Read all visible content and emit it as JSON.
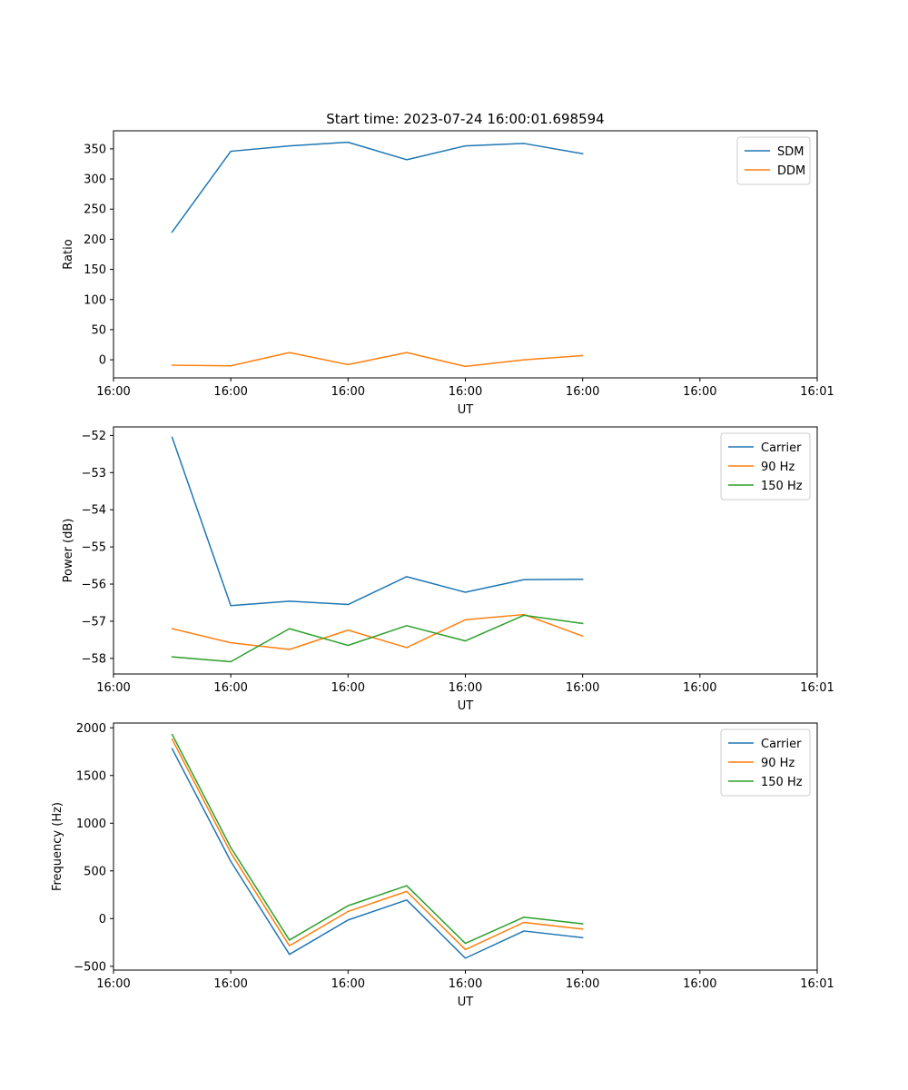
{
  "chart_data": [
    {
      "type": "line",
      "title": "Start time: 2023-07-24 16:00:01.698594",
      "xlabel": "UT",
      "ylabel": "Ratio",
      "xlim": [
        0,
        12
      ],
      "ylim": [
        -30,
        380
      ],
      "x": [
        1,
        2,
        3,
        4,
        5,
        6,
        7,
        8
      ],
      "x_ticks": [
        0,
        2,
        4,
        6,
        8,
        10,
        12
      ],
      "x_tick_labels": [
        "16:00",
        "16:00",
        "16:00",
        "16:00",
        "16:00",
        "16:00",
        "16:01"
      ],
      "y_ticks": [
        0,
        50,
        100,
        150,
        200,
        250,
        300,
        350
      ],
      "y_tick_labels": [
        "0",
        "50",
        "100",
        "150",
        "200",
        "250",
        "300",
        "350"
      ],
      "legend_position": "upper-right",
      "series": [
        {
          "name": "SDM",
          "color": "#1f77b4",
          "values": [
            212,
            346,
            355,
            361,
            332,
            355,
            359,
            342
          ]
        },
        {
          "name": "DDM",
          "color": "#ff7f0e",
          "values": [
            -9,
            -10,
            12,
            -8,
            12,
            -11,
            0,
            7
          ]
        }
      ]
    },
    {
      "type": "line",
      "title": "",
      "xlabel": "UT",
      "ylabel": "Power (dB)",
      "xlim": [
        0,
        12
      ],
      "ylim": [
        -58.42,
        -51.77
      ],
      "x": [
        1,
        2,
        3,
        4,
        5,
        6,
        7,
        8
      ],
      "x_ticks": [
        0,
        2,
        4,
        6,
        8,
        10,
        12
      ],
      "x_tick_labels": [
        "16:00",
        "16:00",
        "16:00",
        "16:00",
        "16:00",
        "16:00",
        "16:01"
      ],
      "y_ticks": [
        -58,
        -57,
        -56,
        -55,
        -54,
        -53,
        -52
      ],
      "y_tick_labels": [
        "−58",
        "−57",
        "−56",
        "−55",
        "−54",
        "−53",
        "−52"
      ],
      "legend_position": "upper-right",
      "series": [
        {
          "name": "Carrier",
          "color": "#1f77b4",
          "values": [
            -52.05,
            -56.58,
            -56.46,
            -56.55,
            -55.8,
            -56.22,
            -55.88,
            -55.87
          ]
        },
        {
          "name": "90 Hz",
          "color": "#ff7f0e",
          "values": [
            -57.2,
            -57.58,
            -57.76,
            -57.24,
            -57.71,
            -56.96,
            -56.82,
            -57.4
          ]
        },
        {
          "name": "150 Hz",
          "color": "#2ca02c",
          "values": [
            -57.96,
            -58.09,
            -57.2,
            -57.65,
            -57.12,
            -57.53,
            -56.84,
            -57.06
          ]
        }
      ]
    },
    {
      "type": "line",
      "title": "",
      "xlabel": "UT",
      "ylabel": "Frequency (Hz)",
      "xlim": [
        0,
        12
      ],
      "ylim": [
        -540,
        2050
      ],
      "x": [
        1,
        2,
        3,
        4,
        5,
        6,
        7,
        8
      ],
      "x_ticks": [
        0,
        2,
        4,
        6,
        8,
        10,
        12
      ],
      "x_tick_labels": [
        "16:00",
        "16:00",
        "16:00",
        "16:00",
        "16:00",
        "16:00",
        "16:01"
      ],
      "y_ticks": [
        -500,
        0,
        500,
        1000,
        1500,
        2000
      ],
      "y_tick_labels": [
        "−500",
        "0",
        "500",
        "1000",
        "1500",
        "2000"
      ],
      "legend_position": "upper-right",
      "series": [
        {
          "name": "Carrier",
          "color": "#1f77b4",
          "values": [
            1780,
            600,
            -375,
            -15,
            195,
            -415,
            -130,
            -200
          ]
        },
        {
          "name": "90 Hz",
          "color": "#ff7f0e",
          "values": [
            1880,
            690,
            -285,
            75,
            285,
            -325,
            -40,
            -110
          ]
        },
        {
          "name": "150 Hz",
          "color": "#2ca02c",
          "values": [
            1930,
            745,
            -225,
            135,
            345,
            -260,
            15,
            -55
          ]
        }
      ]
    }
  ]
}
